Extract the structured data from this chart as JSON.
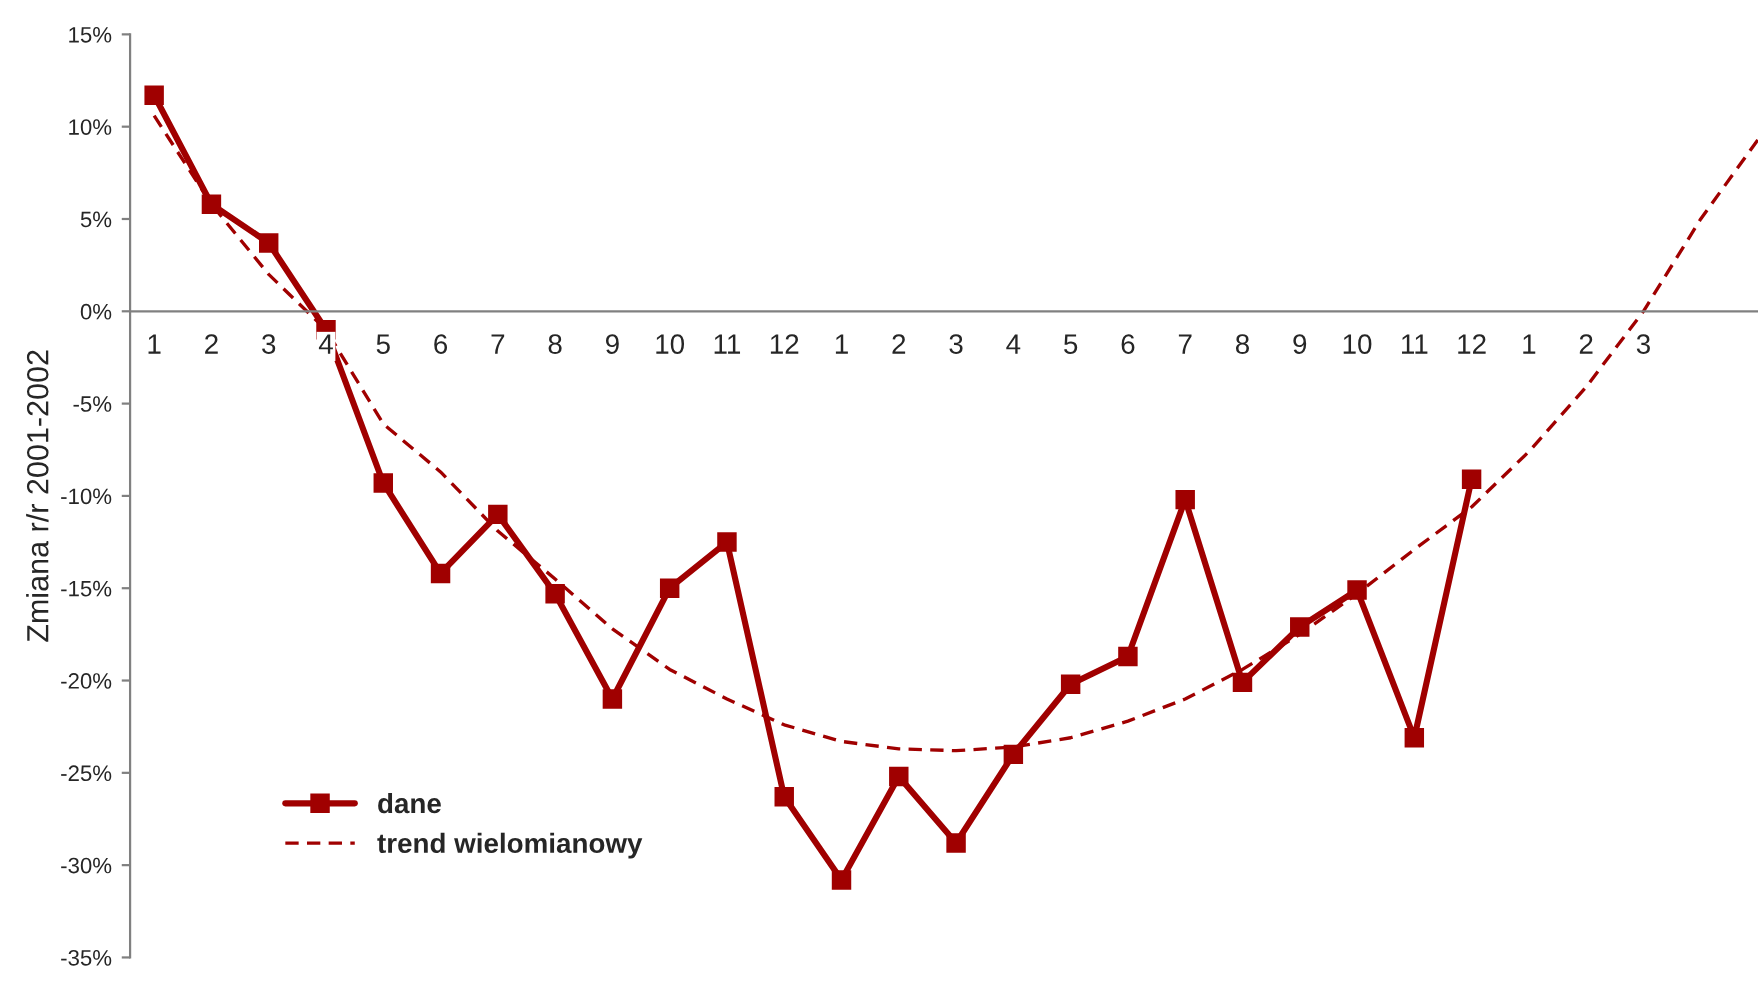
{
  "chart_data": {
    "type": "line",
    "ylabel": "Zmiana r/r 2001-2002",
    "categories": [
      "1",
      "2",
      "3",
      "4",
      "5",
      "6",
      "7",
      "8",
      "9",
      "10",
      "11",
      "12",
      "1",
      "2",
      "3",
      "4",
      "5",
      "6",
      "7",
      "8",
      "9",
      "10",
      "11",
      "12",
      "1",
      "2",
      "3",
      null,
      null
    ],
    "series": [
      {
        "name": "dane",
        "color": "#a00000",
        "marker": "square",
        "line_style": "solid",
        "values": [
          11.7,
          5.8,
          3.7,
          -1.0,
          -9.3,
          -14.2,
          -11.0,
          -15.3,
          -21.0,
          -15.0,
          -12.5,
          -26.3,
          -30.8,
          -25.2,
          -28.8,
          -24.0,
          -20.2,
          -18.7,
          -10.2,
          -20.1,
          -17.1,
          -15.1,
          -23.1,
          -9.1,
          null,
          null,
          null,
          null,
          null
        ]
      },
      {
        "name": "trend wielomianowy",
        "color": "#a00000",
        "marker": "none",
        "line_style": "dashed",
        "values": [
          10.6,
          5.8,
          2.0,
          -1.0,
          -6.1,
          -8.7,
          -11.9,
          -14.5,
          -17.2,
          -19.4,
          -21.0,
          -22.4,
          -23.3,
          -23.7,
          -23.8,
          -23.6,
          -23.1,
          -22.2,
          -21.0,
          -19.4,
          -17.5,
          -15.3,
          -12.9,
          -10.6,
          -7.6,
          -4.1,
          0.0,
          5.0,
          9.3
        ]
      }
    ],
    "ylim": [
      -35,
      15
    ],
    "yticks": [
      {
        "value": -35,
        "label": "-35%"
      },
      {
        "value": -30,
        "label": "-30%"
      },
      {
        "value": -25,
        "label": "-25%"
      },
      {
        "value": -20,
        "label": "-20%"
      },
      {
        "value": -15,
        "label": "-15%"
      },
      {
        "value": -10,
        "label": "-10%"
      },
      {
        "value": -5,
        "label": "-5%"
      },
      {
        "value": 0,
        "label": "0%"
      },
      {
        "value": 5,
        "label": "5%"
      },
      {
        "value": 10,
        "label": "10%"
      },
      {
        "value": 15,
        "label": "15%"
      }
    ],
    "grid": false,
    "legend": "bottom left"
  }
}
